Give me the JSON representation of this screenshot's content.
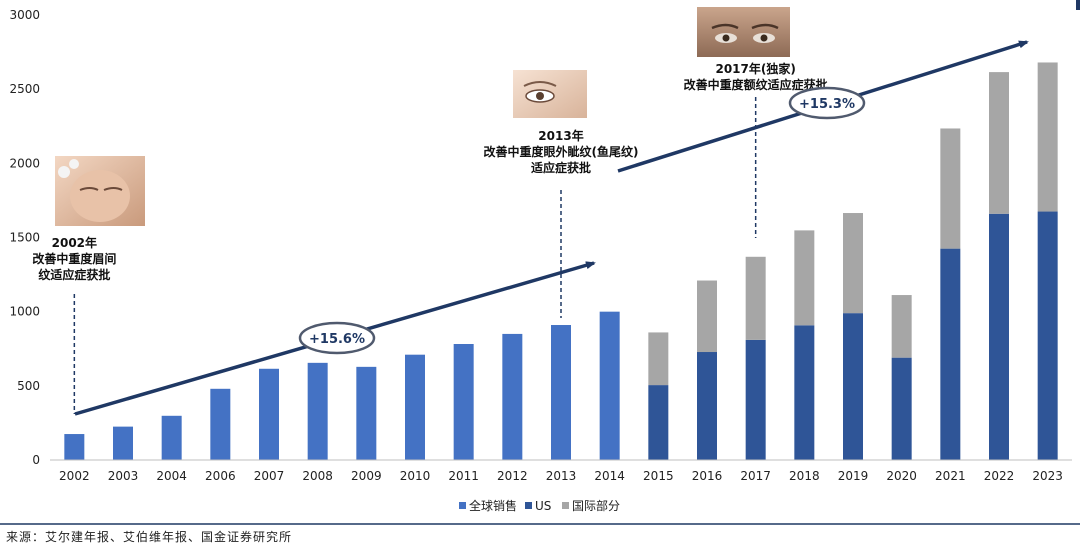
{
  "chart_data": {
    "type": "bar",
    "stacked": true,
    "categories": [
      "2002",
      "2003",
      "2004",
      "2006",
      "2007",
      "2008",
      "2009",
      "2010",
      "2011",
      "2012",
      "2013",
      "2014",
      "2015",
      "2016",
      "2017",
      "2018",
      "2019",
      "2020",
      "2021",
      "2022",
      "2023"
    ],
    "series": [
      {
        "name": "全球销售",
        "color": "#4472c4",
        "values": [
          175,
          225,
          298,
          480,
          615,
          655,
          628,
          710,
          782,
          850,
          910,
          1000,
          null,
          null,
          null,
          null,
          null,
          null,
          null,
          null,
          null
        ]
      },
      {
        "name": "US",
        "color": "#2f5597",
        "values": [
          null,
          null,
          null,
          null,
          null,
          null,
          null,
          null,
          null,
          null,
          null,
          null,
          505,
          728,
          810,
          908,
          990,
          690,
          1425,
          1660,
          1675
        ]
      },
      {
        "name": "国际部分",
        "color": "#a6a6a6",
        "values": [
          null,
          null,
          null,
          null,
          null,
          null,
          null,
          null,
          null,
          null,
          null,
          null,
          355,
          482,
          560,
          640,
          675,
          422,
          810,
          955,
          1005
        ]
      }
    ],
    "ylim": [
      0,
      3000
    ],
    "yticks": [
      0,
      500,
      1000,
      1500,
      2000,
      2500,
      3000
    ],
    "legend": "bottom",
    "annotations": [
      {
        "category": "2002",
        "lines": [
          "2002年",
          "改善中重度眉间",
          "纹适应症获批"
        ]
      },
      {
        "category": "2013",
        "lines": [
          "2013年",
          "改善中重度眼外眦纹(鱼尾纹)",
          "适应症获批"
        ]
      },
      {
        "category": "2017",
        "lines": [
          "2017年(独家)",
          "改善中重度额纹适应症获批"
        ]
      }
    ],
    "growth_labels": [
      "+15.6%",
      "+15.3%"
    ]
  },
  "source": "来源：艾尔建年报、艾伯维年报、国金证券研究所"
}
